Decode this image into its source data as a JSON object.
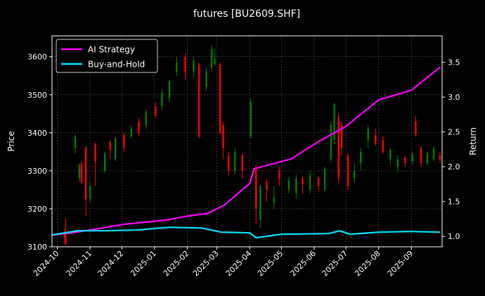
{
  "chart_data": {
    "type": "candlestick-with-line",
    "title": "futures [BU2609.SHF]",
    "ylabel_left": "Price",
    "ylabel_right": "Return",
    "ylim_left": [
      3100,
      3655
    ],
    "ylim_right": [
      0.85,
      3.88
    ],
    "xlim": [
      "2024-09-26",
      "2025-09-30"
    ],
    "y_ticks_left": [
      3100,
      3200,
      3300,
      3400,
      3500,
      3600
    ],
    "y_ticks_right": [
      1.0,
      1.5,
      2.0,
      2.5,
      3.0,
      3.5
    ],
    "x_ticks": [
      "2024-10",
      "2024-11",
      "2024-12",
      "2025-01",
      "2025-02",
      "2025-03",
      "2025-04",
      "2025-05",
      "2025-06",
      "2025-07",
      "2025-08",
      "2025-09"
    ],
    "grid": true,
    "legend_position": "top-left",
    "colors": {
      "up": "#008000",
      "down": "#ff0000",
      "ai": "#ff00ff",
      "bh": "#00e5ff",
      "grid": "#555555"
    },
    "legend": [
      {
        "label": "AI Strategy",
        "color": "#ff00ff"
      },
      {
        "label": "Buy-and-Hold",
        "color": "#00e5ff"
      }
    ],
    "candles": [
      [
        "2024-10-08",
        3135,
        3125,
        3150,
        3105
      ],
      [
        "2024-10-09",
        3125,
        3110,
        3175,
        3105
      ],
      [
        "2024-10-18",
        3360,
        3390,
        3395,
        3345
      ],
      [
        "2024-10-22",
        3280,
        3315,
        3320,
        3270
      ],
      [
        "2024-10-24",
        3320,
        3270,
        3325,
        3265
      ],
      [
        "2024-10-28",
        3360,
        3225,
        3365,
        3180
      ],
      [
        "2024-11-01",
        3225,
        3260,
        3270,
        3215
      ],
      [
        "2024-11-06",
        3370,
        3325,
        3375,
        3260
      ],
      [
        "2024-11-15",
        3300,
        3345,
        3350,
        3295
      ],
      [
        "2024-11-20",
        3375,
        3355,
        3380,
        3330
      ],
      [
        "2024-11-25",
        3330,
        3385,
        3390,
        3325
      ],
      [
        "2024-12-03",
        3395,
        3360,
        3400,
        3350
      ],
      [
        "2024-12-10",
        3390,
        3410,
        3420,
        3385
      ],
      [
        "2024-12-17",
        3430,
        3400,
        3440,
        3390
      ],
      [
        "2024-12-24",
        3420,
        3455,
        3460,
        3410
      ],
      [
        "2025-01-02",
        3470,
        3445,
        3480,
        3440
      ],
      [
        "2025-01-08",
        3470,
        3505,
        3515,
        3460
      ],
      [
        "2025-01-15",
        3490,
        3535,
        3540,
        3480
      ],
      [
        "2025-01-22",
        3560,
        3585,
        3600,
        3550
      ],
      [
        "2025-01-30",
        3600,
        3560,
        3610,
        3540
      ],
      [
        "2025-02-07",
        3560,
        3590,
        3600,
        3545
      ],
      [
        "2025-02-12",
        3580,
        3390,
        3585,
        3385
      ],
      [
        "2025-02-19",
        3520,
        3560,
        3570,
        3510
      ],
      [
        "2025-02-24",
        3570,
        3620,
        3630,
        3560
      ],
      [
        "2025-02-27",
        3580,
        3595,
        3620,
        3575
      ],
      [
        "2025-03-04",
        3580,
        3400,
        3585,
        3395
      ],
      [
        "2025-03-07",
        3420,
        3360,
        3430,
        3330
      ],
      [
        "2025-03-12",
        3340,
        3300,
        3350,
        3285
      ],
      [
        "2025-03-18",
        3300,
        3350,
        3360,
        3290
      ],
      [
        "2025-03-25",
        3340,
        3300,
        3345,
        3280
      ],
      [
        "2025-04-02",
        3390,
        3480,
        3490,
        3385
      ],
      [
        "2025-04-07",
        3310,
        3200,
        3315,
        3160
      ],
      [
        "2025-04-11",
        3170,
        3260,
        3265,
        3150
      ],
      [
        "2025-04-17",
        3270,
        3250,
        3280,
        3220
      ],
      [
        "2025-04-24",
        3215,
        3230,
        3260,
        3200
      ],
      [
        "2025-04-29",
        3300,
        3280,
        3310,
        3260
      ],
      [
        "2025-05-08",
        3250,
        3275,
        3285,
        3240
      ],
      [
        "2025-05-15",
        3240,
        3280,
        3290,
        3225
      ],
      [
        "2025-05-21",
        3280,
        3265,
        3285,
        3240
      ],
      [
        "2025-05-28",
        3250,
        3290,
        3300,
        3240
      ],
      [
        "2025-06-05",
        3280,
        3260,
        3285,
        3245
      ],
      [
        "2025-06-11",
        3250,
        3305,
        3310,
        3245
      ],
      [
        "2025-06-17",
        3330,
        3420,
        3430,
        3320
      ],
      [
        "2025-06-20",
        3380,
        3475,
        3480,
        3370
      ],
      [
        "2025-06-24",
        3440,
        3280,
        3450,
        3270
      ],
      [
        "2025-06-27",
        3420,
        3360,
        3430,
        3340
      ],
      [
        "2025-07-03",
        3340,
        3260,
        3345,
        3250
      ],
      [
        "2025-07-09",
        3280,
        3300,
        3320,
        3270
      ],
      [
        "2025-07-15",
        3320,
        3350,
        3360,
        3300
      ],
      [
        "2025-07-22",
        3380,
        3410,
        3420,
        3360
      ],
      [
        "2025-07-29",
        3395,
        3370,
        3410,
        3365
      ],
      [
        "2025-08-05",
        3380,
        3350,
        3390,
        3345
      ],
      [
        "2025-08-12",
        3330,
        3355,
        3360,
        3315
      ],
      [
        "2025-08-19",
        3310,
        3330,
        3340,
        3295
      ],
      [
        "2025-08-26",
        3335,
        3320,
        3340,
        3310
      ],
      [
        "2025-09-02",
        3325,
        3345,
        3350,
        3315
      ],
      [
        "2025-09-05",
        3430,
        3395,
        3445,
        3390
      ],
      [
        "2025-09-10",
        3360,
        3320,
        3365,
        3310
      ],
      [
        "2025-09-16",
        3320,
        3345,
        3350,
        3315
      ],
      [
        "2025-09-22",
        3330,
        3360,
        3365,
        3325
      ],
      [
        "2025-09-28",
        3340,
        3330,
        3350,
        3320
      ]
    ],
    "series": [
      {
        "name": "AI Strategy",
        "color": "#ff00ff",
        "x": [
          "2024-09-26",
          "2024-10-15",
          "2024-11-05",
          "2024-12-01",
          "2025-01-10",
          "2025-02-01",
          "2025-02-20",
          "2025-03-08",
          "2025-04-01",
          "2025-04-05",
          "2025-05-10",
          "2025-06-05",
          "2025-07-01",
          "2025-08-01",
          "2025-09-01",
          "2025-09-28"
        ],
        "values": [
          1.02,
          1.05,
          1.1,
          1.17,
          1.23,
          1.29,
          1.33,
          1.45,
          1.76,
          1.97,
          2.11,
          2.36,
          2.58,
          2.96,
          3.1,
          3.43
        ]
      },
      {
        "name": "Buy-and-Hold",
        "color": "#00e5ff",
        "x": [
          "2024-09-26",
          "2024-10-20",
          "2024-11-15",
          "2024-12-15",
          "2025-01-15",
          "2025-02-15",
          "2025-03-05",
          "2025-04-01",
          "2025-04-07",
          "2025-05-01",
          "2025-06-15",
          "2025-06-25",
          "2025-07-05",
          "2025-08-01",
          "2025-09-01",
          "2025-09-28"
        ],
        "values": [
          1.02,
          1.08,
          1.08,
          1.09,
          1.13,
          1.12,
          1.06,
          1.05,
          0.98,
          1.03,
          1.04,
          1.08,
          1.03,
          1.06,
          1.07,
          1.06
        ]
      }
    ]
  }
}
